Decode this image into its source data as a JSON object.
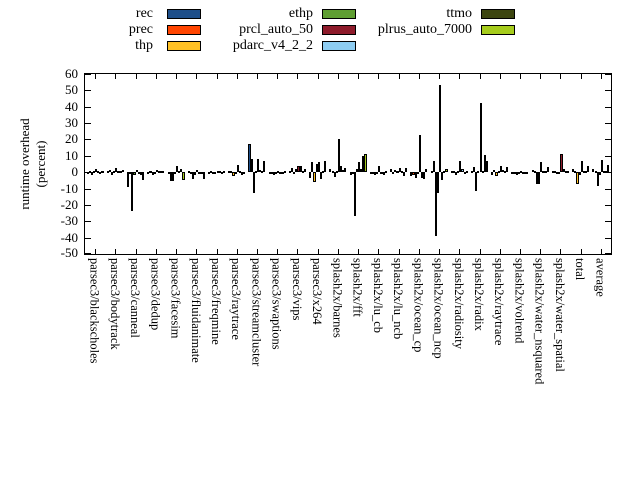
{
  "chart_data": {
    "type": "bar",
    "title": "",
    "ylabel_lines": [
      "runtime overhead",
      "(percent)"
    ],
    "xlabel": "",
    "ylim": [
      -50,
      60
    ],
    "y_ticks": [
      60,
      50,
      40,
      30,
      20,
      10,
      0,
      -10,
      -20,
      -30,
      -40,
      -50
    ],
    "grid": false,
    "legend_position": "top",
    "categories": [
      "parsec3/blackscholes",
      "parsec3/bodytrack",
      "parsec3/canneal",
      "parsec3/dedup",
      "parsec3/facesim",
      "parsec3/fluidanimate",
      "parsec3/freqmine",
      "parsec3/raytrace",
      "parsec3/streamcluster",
      "parsec3/swaptions",
      "parsec3/vips",
      "parsec3/x264",
      "splash2x/barnes",
      "splash2x/fft",
      "splash2x/lu_cb",
      "splash2x/lu_ncb",
      "splash2x/ocean_cp",
      "splash2x/ocean_ncp",
      "splash2x/radiosity",
      "splash2x/radix",
      "splash2x/raytrace",
      "splash2x/volrend",
      "splash2x/water_nsquared",
      "splash2x/water_spatial",
      "total",
      "average"
    ],
    "series": [
      {
        "name": "rec",
        "color": "#1d4e89",
        "values": [
          -0.5,
          1,
          -8.8,
          -0.5,
          -1,
          1,
          -0.5,
          1,
          17,
          -0.5,
          1,
          -3.5,
          2,
          -1.5,
          -0.5,
          2,
          -2.5,
          0.5,
          1,
          0.5,
          -1.5,
          -1,
          1.5,
          1,
          2,
          2
        ]
      },
      {
        "name": "prec",
        "color": "#ff4500",
        "values": [
          0.5,
          1.5,
          -1,
          0.5,
          -5.5,
          -1,
          0.5,
          1,
          8,
          -0.5,
          2.5,
          6,
          1,
          -0.5,
          -0.5,
          -1,
          -2,
          6.7,
          1,
          3,
          1.5,
          -0.5,
          1,
          1,
          0.5,
          0.5
        ]
      },
      {
        "name": "thp",
        "color": "#ffc125",
        "values": [
          -1.5,
          -1.5,
          -24,
          -1.5,
          -5.5,
          -4,
          -1,
          -2.5,
          -12.5,
          -1.5,
          -1,
          -6,
          -3,
          -27,
          -1.5,
          1.5,
          -3.5,
          -39,
          -1.5,
          -11.5,
          -2.5,
          -1.5,
          -7.5,
          -1,
          -7,
          -8.5
        ]
      },
      {
        "name": "ethp",
        "color": "#5f9e32",
        "values": [
          0.5,
          1,
          -1.5,
          -0.5,
          -1,
          -2,
          -0.5,
          -1,
          1,
          -1,
          2,
          5,
          1,
          2,
          -0.5,
          1,
          -1,
          -13,
          0.5,
          0.5,
          0.5,
          -1,
          -7,
          -1,
          -2,
          -1.5
        ]
      },
      {
        "name": "prcl_auto_50",
        "color": "#8e1b2b",
        "values": [
          2,
          2.5,
          1.5,
          1.5,
          4,
          1.5,
          1,
          4.5,
          8,
          0.5,
          4,
          6.5,
          20,
          6.5,
          3.5,
          2.5,
          23,
          53,
          7,
          42.5,
          4,
          0.5,
          6,
          11,
          7,
          7.5
        ]
      },
      {
        "name": "pdarc_v4_2_2",
        "color": "#8ecdf2",
        "values": [
          0.5,
          0.5,
          -1,
          0.5,
          1,
          -0.5,
          0.5,
          0.5,
          1.5,
          -0.5,
          4,
          -4,
          3.5,
          2,
          -0.5,
          1,
          -3.5,
          -4.5,
          2,
          1,
          1.5,
          -0.5,
          1,
          2,
          1,
          1
        ]
      },
      {
        "name": "ttmo",
        "color": "#3c450f",
        "values": [
          -0.5,
          0.5,
          -2,
          0.5,
          2,
          -1,
          -0.5,
          -1.5,
          1,
          -1,
          1,
          0.5,
          1.5,
          10,
          -1.5,
          -2.5,
          -4,
          0.5,
          -0.5,
          10.7,
          0.5,
          -1,
          1,
          1,
          1,
          0.5
        ]
      },
      {
        "name": "plrus_auto_7000",
        "color": "#a6cc1c",
        "values": [
          1,
          1.5,
          -5,
          1,
          -5,
          -4,
          0.5,
          -1,
          7,
          0.5,
          2,
          7,
          2.5,
          11,
          0.5,
          2.5,
          2,
          2,
          1,
          6.7,
          3,
          -1,
          3,
          1,
          4,
          4.5
        ]
      }
    ],
    "legend_columns": [
      [
        0,
        1,
        2
      ],
      [
        3,
        4,
        5
      ],
      [
        6,
        7
      ]
    ]
  }
}
